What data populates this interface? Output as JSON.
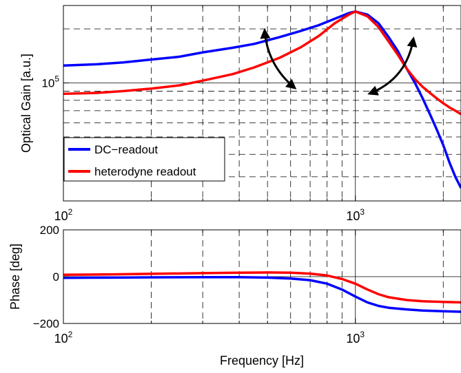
{
  "chart_data": [
    {
      "type": "line",
      "x_scale": "log",
      "y_scale": "log",
      "xlim": [
        100,
        2300
      ],
      "ylim": [
        22000,
        270000
      ],
      "grid": true,
      "xlabel": "",
      "ylabel": "Optical Gain [a.u.]",
      "x_ticks": [
        {
          "value": 100,
          "base": "10",
          "exp": "2"
        },
        {
          "value": 1000,
          "base": "10",
          "exp": "3"
        }
      ],
      "y_ticks": [
        {
          "value": 100000,
          "base": "10",
          "exp": "5"
        }
      ],
      "legend_position": "bottom-left",
      "series": [
        {
          "name": "DC−readout",
          "color": "#0000ff",
          "x": [
            100,
            130,
            160,
            200,
            250,
            300,
            380,
            450,
            550,
            650,
            750,
            850,
            950,
            1000,
            1100,
            1200,
            1300,
            1400,
            1500,
            1600,
            1700,
            1800,
            1900,
            2000,
            2100,
            2200,
            2300
          ],
          "y": [
            125000,
            127000,
            130000,
            135000,
            140000,
            148000,
            157000,
            165000,
            180000,
            195000,
            210000,
            228000,
            245000,
            250000,
            240000,
            215000,
            180000,
            150000,
            120000,
            100000,
            82000,
            67000,
            55000,
            45000,
            36000,
            30000,
            26000
          ]
        },
        {
          "name": "heterodyne readout",
          "color": "#ff0000",
          "x": [
            100,
            130,
            160,
            200,
            250,
            300,
            380,
            450,
            550,
            650,
            750,
            850,
            950,
            1000,
            1100,
            1200,
            1300,
            1400,
            1500,
            1600,
            1700,
            1800,
            1900,
            2000,
            2100,
            2200,
            2300
          ],
          "y": [
            87000,
            88000,
            90000,
            93000,
            97000,
            103000,
            112000,
            122000,
            138000,
            158000,
            183000,
            215000,
            240000,
            250000,
            235000,
            205000,
            170000,
            143000,
            120000,
            105000,
            95000,
            88000,
            82000,
            77000,
            73000,
            70000,
            67000
          ]
        }
      ]
    },
    {
      "type": "line",
      "x_scale": "log",
      "y_scale": "linear",
      "xlim": [
        100,
        2300
      ],
      "ylim": [
        -200,
        200
      ],
      "grid": true,
      "xlabel": "Frequency [Hz]",
      "ylabel": "Phase [deg]",
      "x_ticks": [
        {
          "value": 100,
          "base": "10",
          "exp": "2"
        },
        {
          "value": 1000,
          "base": "10",
          "exp": "3"
        }
      ],
      "y_ticks": [
        {
          "value": 200,
          "label": "200"
        },
        {
          "value": 0,
          "label": "0"
        },
        {
          "value": -200,
          "label": "−200"
        }
      ],
      "series": [
        {
          "name": "DC−readout",
          "color": "#0000ff",
          "x": [
            100,
            150,
            200,
            300,
            400,
            500,
            600,
            700,
            800,
            900,
            1000,
            1100,
            1200,
            1300,
            1500,
            1700,
            2000,
            2300
          ],
          "y": [
            -5,
            -4,
            -3,
            -2,
            -2,
            -4,
            -8,
            -15,
            -30,
            -55,
            -85,
            -110,
            -125,
            -133,
            -140,
            -145,
            -148,
            -150
          ]
        },
        {
          "name": "heterodyne readout",
          "color": "#ff0000",
          "x": [
            100,
            150,
            200,
            300,
            400,
            500,
            600,
            700,
            800,
            900,
            1000,
            1100,
            1200,
            1300,
            1500,
            1700,
            2000,
            2300
          ],
          "y": [
            8,
            10,
            12,
            15,
            17,
            18,
            17,
            13,
            5,
            -10,
            -30,
            -55,
            -75,
            -88,
            -100,
            -105,
            -108,
            -110
          ]
        }
      ]
    }
  ]
}
